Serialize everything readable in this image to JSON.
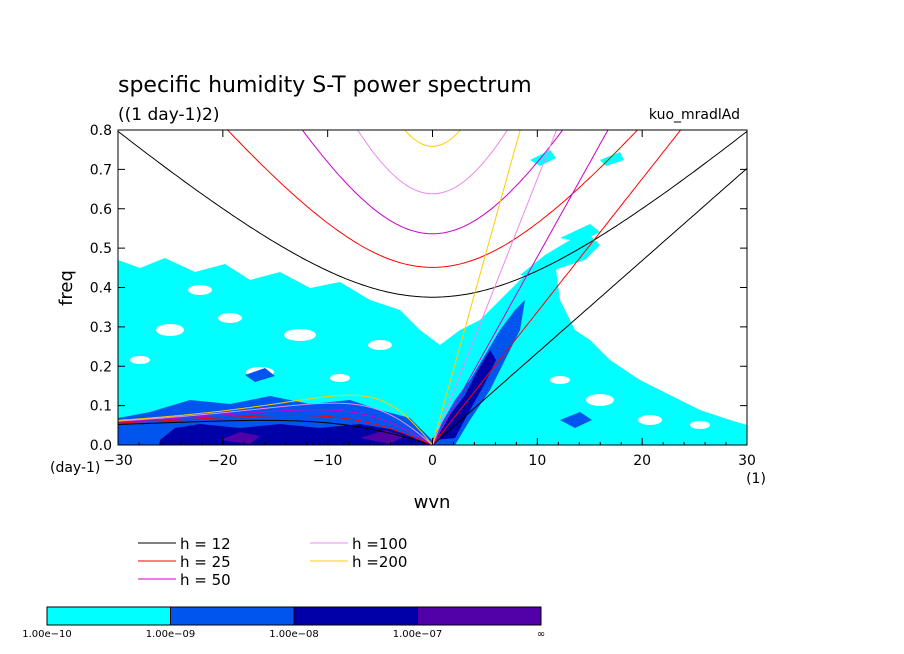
{
  "chart_data": {
    "type": "contour",
    "title": "specific humidity S-T power spectrum",
    "subtitle": "((1 day-1)2)",
    "run_label": "kuo_mradlAd",
    "xlabel": "wvn",
    "ylabel": "freq",
    "x_unit": "(1)",
    "y_unit": "(day-1)",
    "xlim": [
      -30,
      30
    ],
    "ylim": [
      0,
      0.8
    ],
    "x_ticks": [
      -30,
      -20,
      -10,
      0,
      10,
      20,
      30
    ],
    "y_ticks": [
      0.0,
      0.1,
      0.2,
      0.3,
      0.4,
      0.5,
      0.6,
      0.7,
      0.8
    ],
    "x_tick_labels": [
      "−30",
      "−20",
      "−10",
      "0",
      "10",
      "20",
      "30"
    ],
    "y_tick_labels": [
      "0.0",
      "0.1",
      "0.2",
      "0.3",
      "0.4",
      "0.5",
      "0.6",
      "0.7",
      "0.8"
    ],
    "colorbar": {
      "labels": [
        "1.00e−10",
        "1.00e−09",
        "1.00e−08",
        "1.00e−07",
        "∞"
      ],
      "colors": [
        "#00ffff",
        "#0055ee",
        "#0000a8",
        "#5200a8"
      ]
    },
    "series": [
      {
        "name": "h = 12",
        "equivalent_depth": 12,
        "color": "#000000"
      },
      {
        "name": "h = 25",
        "equivalent_depth": 25,
        "color": "#ff0000"
      },
      {
        "name": "h = 50",
        "equivalent_depth": 50,
        "color": "#cc00cc"
      },
      {
        "name": "h =100",
        "equivalent_depth": 100,
        "color": "#ee88ee"
      },
      {
        "name": "h =200",
        "equivalent_depth": 200,
        "color": "#ffcc00"
      }
    ]
  }
}
